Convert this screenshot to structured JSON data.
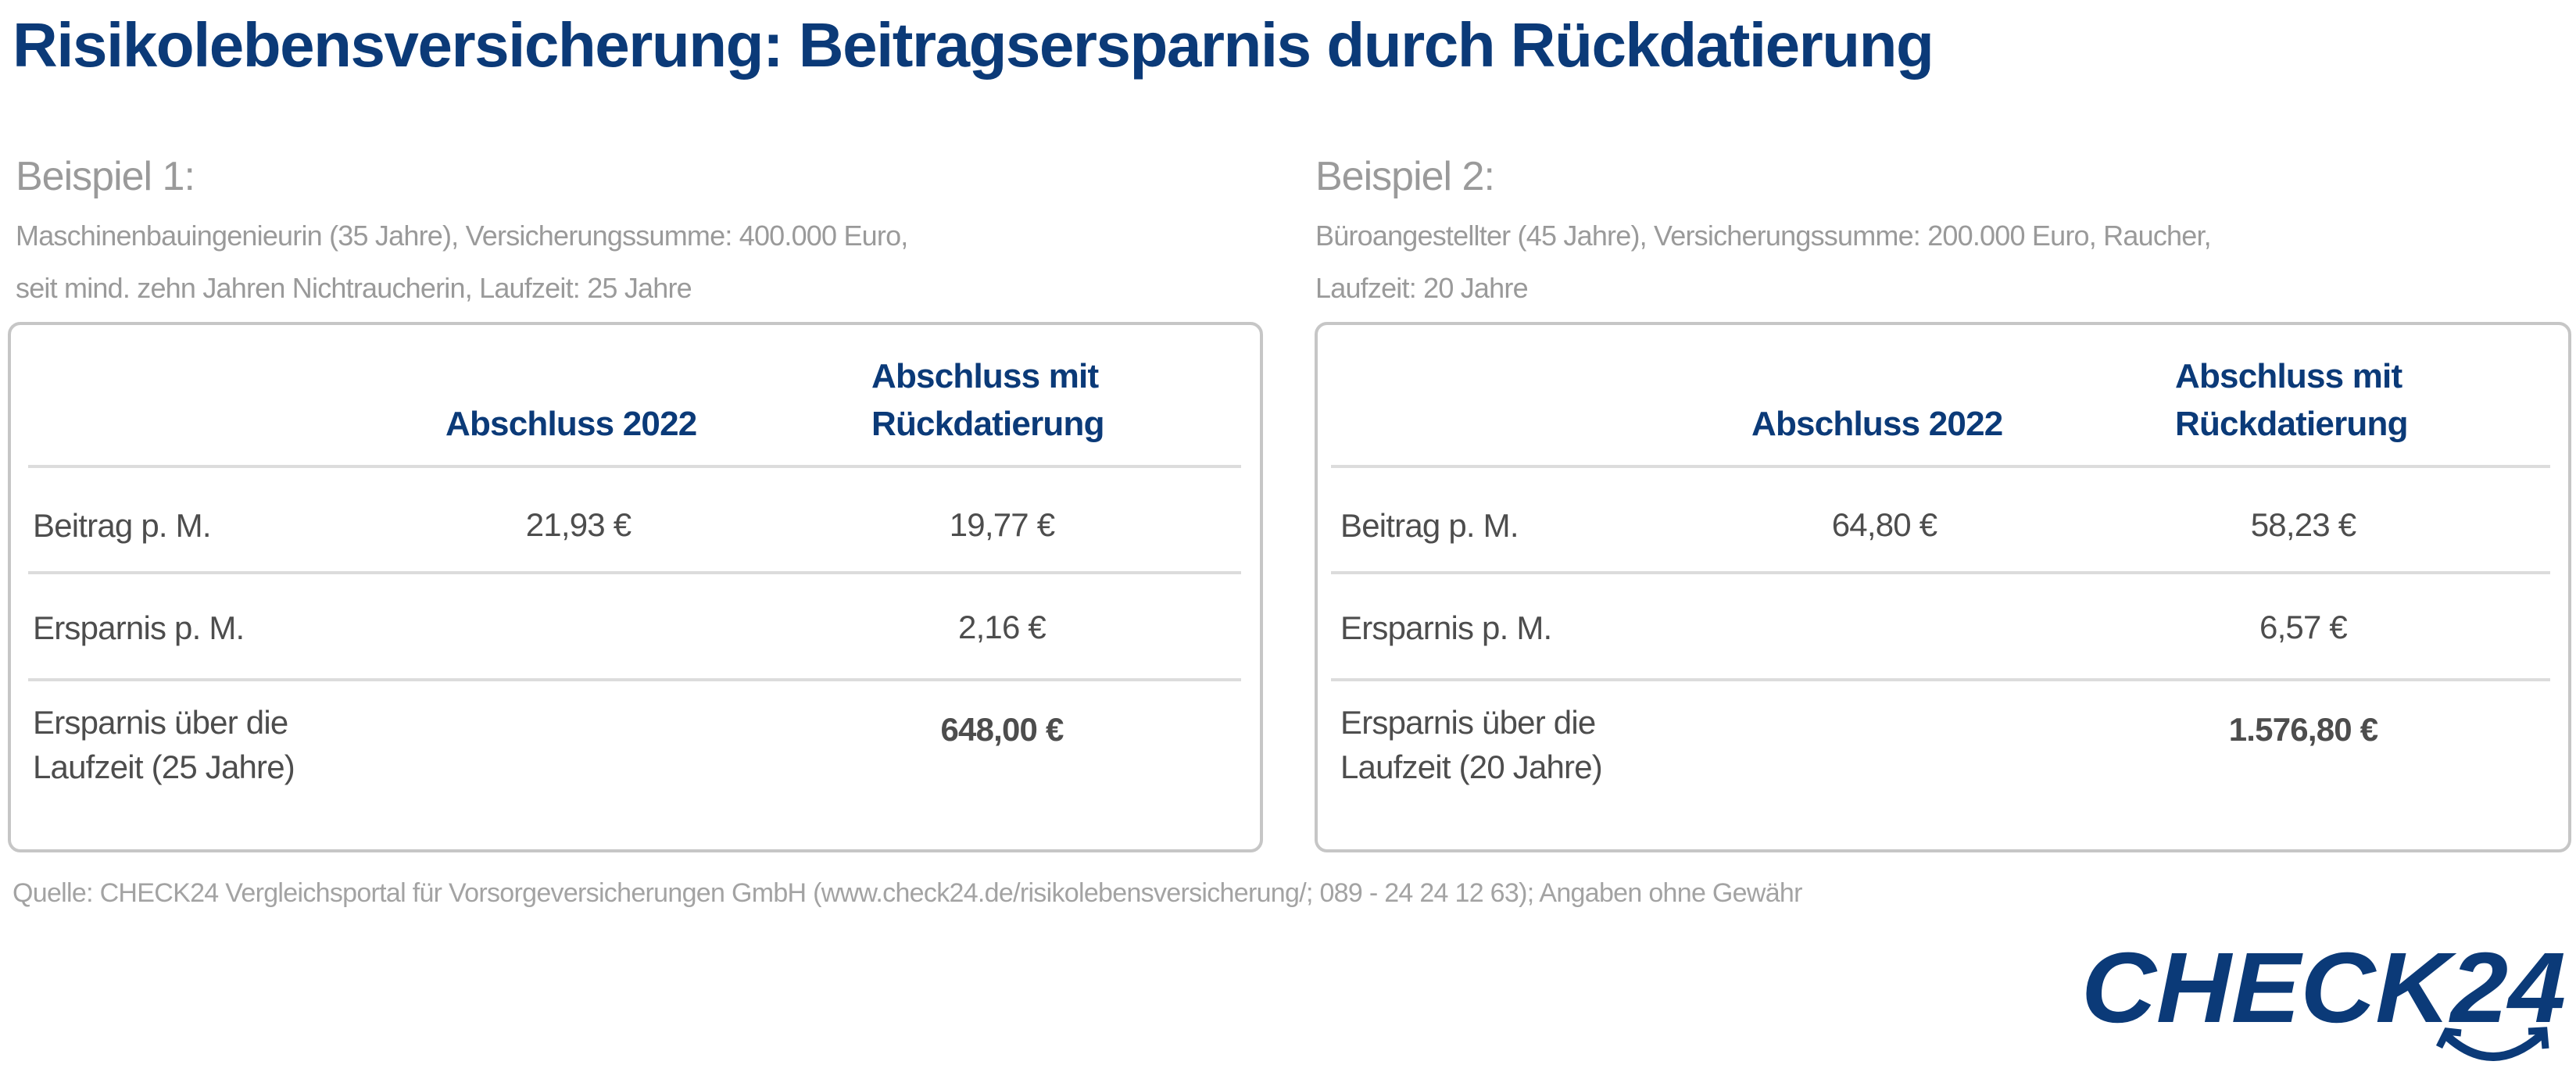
{
  "title": "Risikolebensversicherung: Beitragsersparnis durch Rückdatierung",
  "examples": [
    {
      "heading": "Beispiel 1:",
      "desc_line1": "Maschinenbauingenieurin (35 Jahre), Versicherungssumme: 400.000 Euro,",
      "desc_line2": "seit mind. zehn Jahren Nichtraucherin, Laufzeit: 25 Jahre",
      "col1_header": "Abschluss 2022",
      "col2_header_line1": "Abschluss mit",
      "col2_header_line2": "Rückdatierung",
      "rows": [
        {
          "label": "Beitrag p. M.",
          "v1": "21,93 €",
          "v2": "19,77 €"
        },
        {
          "label": "Ersparnis p. M.",
          "v1": "",
          "v2": "2,16 €"
        },
        {
          "label_line1": "Ersparnis über die",
          "label_line2": "Laufzeit (25 Jahre)",
          "v1": "",
          "v2": "648,00 €"
        }
      ]
    },
    {
      "heading": "Beispiel 2:",
      "desc_line1": "Büroangestellter (45 Jahre),  Versicherungssumme: 200.000 Euro, Raucher,",
      "desc_line2": "Laufzeit: 20 Jahre",
      "col1_header": "Abschluss 2022",
      "col2_header_line1": "Abschluss mit",
      "col2_header_line2": "Rückdatierung",
      "rows": [
        {
          "label": "Beitrag p. M.",
          "v1": "64,80 €",
          "v2": "58,23 €"
        },
        {
          "label": "Ersparnis p. M.",
          "v1": "",
          "v2": "6,57 €"
        },
        {
          "label_line1": "Ersparnis über die",
          "label_line2": "Laufzeit (20 Jahre)",
          "v1": "",
          "v2": "1.576,80 €"
        }
      ]
    }
  ],
  "source": "Quelle: CHECK24 Vergleichsportal für Vorsorgeversicherungen GmbH (www.check24.de/risikolebensversicherung/; 089 - 24 24 12 63); Angaben ohne Gewähr",
  "logo": {
    "text": "CHECK24",
    "color": "#0b3a78"
  }
}
